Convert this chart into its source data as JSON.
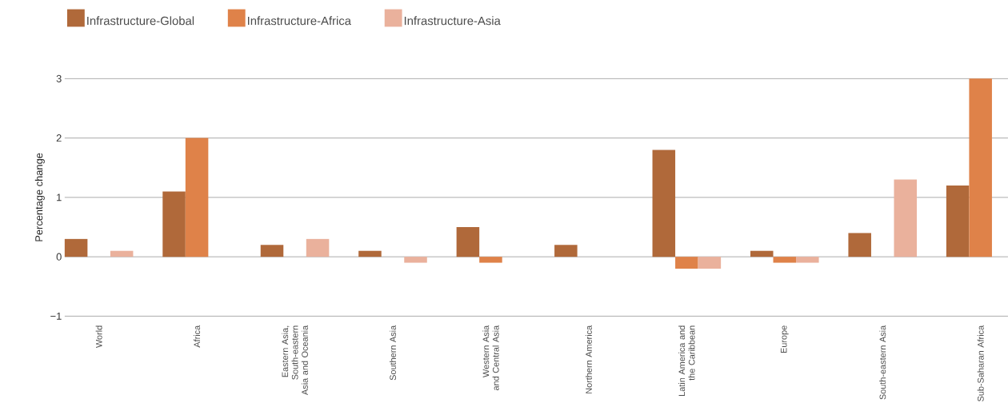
{
  "chart_data": {
    "type": "bar",
    "ylabel": "Percentage change",
    "categories": [
      "World",
      "Africa",
      "Eastern Asia, South-eastern Asia and Oceania",
      "Southern Asia",
      "Western Asia and Central Asia",
      "Northern America",
      "Latin America and the Caribbean",
      "Europe",
      "South-eastern Asia",
      "Sub-Saharan Africa"
    ],
    "series": [
      {
        "name": "Infrastructure-Global",
        "color": "#b0693a",
        "values": [
          0.3,
          1.1,
          0.2,
          0.1,
          0.5,
          0.2,
          1.8,
          0.1,
          0.4,
          1.2
        ]
      },
      {
        "name": "Infrastructure-Africa",
        "color": "#df8249",
        "values": [
          null,
          2.0,
          null,
          null,
          -0.1,
          null,
          -0.2,
          -0.1,
          null,
          3.0
        ]
      },
      {
        "name": "Infrastructure-Asia",
        "color": "#eab19c",
        "values": [
          0.1,
          null,
          0.3,
          -0.1,
          null,
          null,
          -0.2,
          -0.1,
          1.3,
          null
        ]
      }
    ],
    "ylim": [
      -1,
      3
    ],
    "yticks": [
      {
        "value": -1,
        "label": "−1"
      },
      0,
      1,
      2,
      3
    ],
    "grid": "y",
    "legend": "top left"
  }
}
